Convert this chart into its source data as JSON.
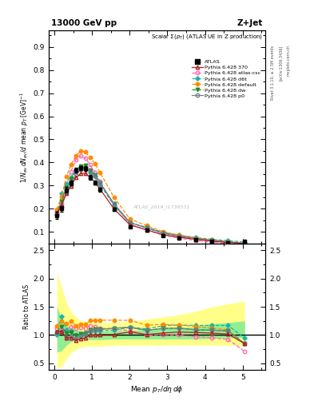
{
  "title_left": "13000 GeV pp",
  "title_right": "Z+Jet",
  "main_title": "Scalar $\\Sigma(p_T)$ (ATLAS UE in Z production)",
  "ylabel_main": "$1/N_{ev}\\,dN_{ev}/d$ mean $p_T$ [GeV]$^{-1}$",
  "ylabel_ratio": "Ratio to ATLAS",
  "xlabel": "Mean $p_T/d\\eta\\,d\\phi$",
  "watermark": "ATLAS_2019_I1736531",
  "rivet_label": "Rivet 3.1.10, ≥ 2.5M events",
  "arxiv_label": "[arXiv:1306.3436]",
  "mcplots_label": "mcplots.cern.ch",
  "main_ylim": [
    0.05,
    0.97
  ],
  "main_yticks": [
    0.1,
    0.2,
    0.3,
    0.4,
    0.5,
    0.6,
    0.7,
    0.8,
    0.9
  ],
  "ratio_ylim": [
    0.38,
    2.62
  ],
  "ratio_yticks": [
    0.5,
    1.0,
    1.5,
    2.0,
    2.5
  ],
  "xlim": [
    -0.15,
    5.6
  ],
  "xticks": [
    0,
    1,
    2,
    3,
    4,
    5
  ],
  "atlas_x": [
    0.07,
    0.19,
    0.32,
    0.44,
    0.57,
    0.7,
    0.82,
    0.95,
    1.08,
    1.21,
    1.58,
    2.01,
    2.45,
    2.88,
    3.31,
    3.75,
    4.18,
    4.61,
    5.05
  ],
  "atlas_y": [
    0.171,
    0.201,
    0.281,
    0.313,
    0.367,
    0.376,
    0.374,
    0.336,
    0.313,
    0.283,
    0.198,
    0.123,
    0.108,
    0.085,
    0.073,
    0.065,
    0.058,
    0.053,
    0.059
  ],
  "atlas_yerr_lo": [
    0.015,
    0.012,
    0.012,
    0.01,
    0.01,
    0.01,
    0.009,
    0.009,
    0.008,
    0.008,
    0.006,
    0.004,
    0.003,
    0.003,
    0.002,
    0.002,
    0.002,
    0.002,
    0.003
  ],
  "atlas_yerr_hi": [
    0.015,
    0.012,
    0.012,
    0.01,
    0.01,
    0.01,
    0.009,
    0.009,
    0.008,
    0.008,
    0.006,
    0.004,
    0.003,
    0.003,
    0.002,
    0.002,
    0.002,
    0.002,
    0.003
  ],
  "py370_x": [
    0.07,
    0.19,
    0.32,
    0.44,
    0.57,
    0.7,
    0.82,
    0.95,
    1.08,
    1.21,
    1.58,
    2.01,
    2.45,
    2.88,
    3.31,
    3.75,
    4.18,
    4.61,
    5.05
  ],
  "py370_y": [
    0.183,
    0.214,
    0.267,
    0.298,
    0.335,
    0.352,
    0.354,
    0.336,
    0.314,
    0.286,
    0.2,
    0.13,
    0.109,
    0.088,
    0.077,
    0.068,
    0.06,
    0.054,
    0.05
  ],
  "pyatlas_x": [
    0.07,
    0.19,
    0.32,
    0.44,
    0.57,
    0.7,
    0.82,
    0.95,
    1.08,
    1.21,
    1.58,
    2.01,
    2.45,
    2.88,
    3.31,
    3.75,
    4.18,
    4.61,
    5.05
  ],
  "pyatlas_y": [
    0.192,
    0.222,
    0.305,
    0.36,
    0.412,
    0.428,
    0.42,
    0.39,
    0.358,
    0.318,
    0.218,
    0.133,
    0.108,
    0.086,
    0.073,
    0.063,
    0.055,
    0.049,
    0.042
  ],
  "pyd6t_x": [
    0.07,
    0.19,
    0.32,
    0.44,
    0.57,
    0.7,
    0.82,
    0.95,
    1.08,
    1.21,
    1.58,
    2.01,
    2.45,
    2.88,
    3.31,
    3.75,
    4.18,
    4.61,
    5.05
  ],
  "pyd6t_y": [
    0.173,
    0.268,
    0.308,
    0.335,
    0.367,
    0.38,
    0.382,
    0.358,
    0.338,
    0.305,
    0.215,
    0.14,
    0.12,
    0.099,
    0.086,
    0.076,
    0.068,
    0.062,
    0.056
  ],
  "pydef_x": [
    0.07,
    0.19,
    0.32,
    0.44,
    0.57,
    0.7,
    0.82,
    0.95,
    1.08,
    1.21,
    1.58,
    2.01,
    2.45,
    2.88,
    3.31,
    3.75,
    4.18,
    4.61,
    5.05
  ],
  "pydef_y": [
    0.198,
    0.252,
    0.338,
    0.39,
    0.428,
    0.45,
    0.445,
    0.422,
    0.395,
    0.358,
    0.25,
    0.155,
    0.127,
    0.101,
    0.086,
    0.075,
    0.065,
    0.058,
    0.05
  ],
  "pydw_x": [
    0.07,
    0.19,
    0.32,
    0.44,
    0.57,
    0.7,
    0.82,
    0.95,
    1.08,
    1.21,
    1.58,
    2.01,
    2.45,
    2.88,
    3.31,
    3.75,
    4.18,
    4.61,
    5.05
  ],
  "pydw_y": [
    0.18,
    0.232,
    0.29,
    0.328,
    0.365,
    0.385,
    0.387,
    0.367,
    0.347,
    0.312,
    0.222,
    0.14,
    0.117,
    0.095,
    0.082,
    0.071,
    0.063,
    0.057,
    0.05
  ],
  "pyp0_x": [
    0.07,
    0.19,
    0.32,
    0.44,
    0.57,
    0.7,
    0.82,
    0.95,
    1.08,
    1.21,
    1.58,
    2.01,
    2.45,
    2.88,
    3.31,
    3.75,
    4.18,
    4.61,
    5.05
  ],
  "pyp0_y": [
    0.18,
    0.213,
    0.272,
    0.305,
    0.345,
    0.37,
    0.377,
    0.362,
    0.342,
    0.312,
    0.222,
    0.14,
    0.117,
    0.095,
    0.082,
    0.071,
    0.063,
    0.057,
    0.05
  ],
  "green_band_lo": [
    0.7,
    0.72,
    0.82,
    0.88,
    0.9,
    0.92,
    0.92,
    0.92,
    0.92,
    0.92,
    0.93,
    0.93,
    0.93,
    0.93,
    0.93,
    0.93,
    0.94,
    0.95,
    0.96
  ],
  "green_band_hi": [
    1.5,
    1.3,
    1.18,
    1.12,
    1.1,
    1.08,
    1.07,
    1.07,
    1.07,
    1.07,
    1.08,
    1.08,
    1.1,
    1.12,
    1.13,
    1.15,
    1.2,
    1.22,
    1.25
  ],
  "yellow_band_lo": [
    0.42,
    0.44,
    0.58,
    0.68,
    0.74,
    0.78,
    0.8,
    0.8,
    0.8,
    0.8,
    0.82,
    0.82,
    0.82,
    0.82,
    0.82,
    0.82,
    0.82,
    0.82,
    0.82
  ],
  "yellow_band_hi": [
    2.1,
    1.85,
    1.58,
    1.42,
    1.32,
    1.26,
    1.24,
    1.23,
    1.22,
    1.22,
    1.22,
    1.24,
    1.28,
    1.32,
    1.36,
    1.42,
    1.5,
    1.55,
    1.6
  ],
  "color_370": "#b22222",
  "color_atlas_csc": "#ff69b4",
  "color_d6t": "#20b2aa",
  "color_default": "#ff8c00",
  "color_dw": "#228b22",
  "color_p0": "#708090",
  "color_atlas_data": "#000000",
  "green_band_color": "#90ee90",
  "yellow_band_color": "#ffff88",
  "fig_bg": "#ffffff"
}
